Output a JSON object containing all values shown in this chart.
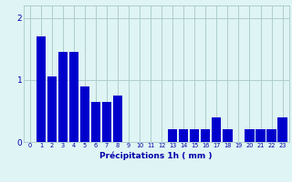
{
  "categories": [
    0,
    1,
    2,
    3,
    4,
    5,
    6,
    7,
    8,
    9,
    10,
    11,
    12,
    13,
    14,
    15,
    16,
    17,
    18,
    19,
    20,
    21,
    22,
    23
  ],
  "values": [
    0,
    1.7,
    1.05,
    1.45,
    1.45,
    0.9,
    0.65,
    0.65,
    0.75,
    0,
    0,
    0,
    0,
    0.2,
    0.2,
    0.2,
    0.2,
    0.4,
    0.2,
    0,
    0.2,
    0.2,
    0.2,
    0.4
  ],
  "bar_color": "#0000cc",
  "background_color": "#dff4f4",
  "grid_color": "#a8c8c8",
  "xlabel": "Précipitations 1h ( mm )",
  "ylim": [
    0,
    2.2
  ],
  "yticks": [
    0,
    1,
    2
  ],
  "bar_width": 0.85,
  "tick_color": "#0000aa",
  "xlabel_fontsize": 6.5,
  "xtick_fontsize": 4.8,
  "ytick_fontsize": 6.5
}
